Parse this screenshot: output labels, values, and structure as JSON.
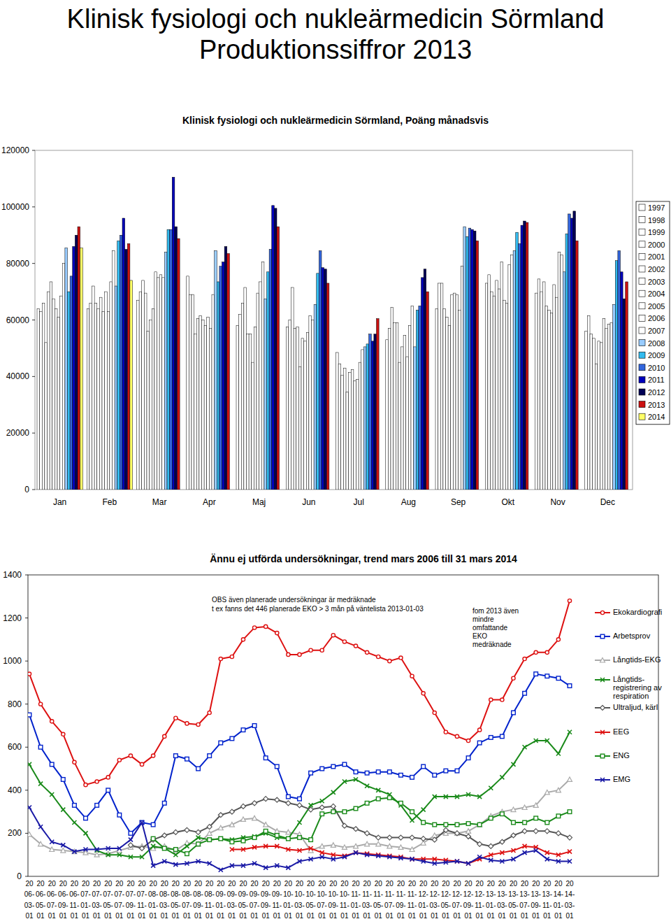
{
  "header": {
    "title": [
      "Klinisk fysiologi och nukleärmedicin Sörmland",
      "Produktionssiffror 2013"
    ]
  },
  "chart_data": [
    {
      "type": "bar",
      "title": "Klinisk fysiologi och nukleärmedicin Sörmland, Poäng månadsvis",
      "categories": [
        "Jan",
        "Feb",
        "Mar",
        "Apr",
        "Maj",
        "Jun",
        "Jul",
        "Aug",
        "Sep",
        "Okt",
        "Nov",
        "Dec"
      ],
      "series": [
        {
          "name": "1997",
          "color": "#ffffff",
          "values": [
            64000,
            64000,
            67000,
            75500,
            58000,
            57500,
            48500,
            53000,
            64000,
            73000,
            69500,
            56000
          ]
        },
        {
          "name": "1998",
          "color": "#ffffff",
          "values": [
            63000,
            66000,
            70000,
            69000,
            62000,
            60000,
            44500,
            57000,
            73000,
            76000,
            74500,
            61500
          ]
        },
        {
          "name": "1999",
          "color": "#ffffff",
          "values": [
            66000,
            72000,
            74000,
            69000,
            66000,
            71500,
            40500,
            64500,
            73000,
            70000,
            70000,
            55000
          ]
        },
        {
          "name": "2000",
          "color": "#ffffff",
          "values": [
            52000,
            66000,
            69500,
            55000,
            71500,
            57000,
            43000,
            59000,
            64000,
            68500,
            73500,
            53500
          ]
        },
        {
          "name": "2001",
          "color": "#ffffff",
          "values": [
            70000,
            64000,
            56000,
            60500,
            55000,
            57500,
            34500,
            59000,
            61000,
            74000,
            65000,
            44500
          ]
        },
        {
          "name": "2002",
          "color": "#ffffff",
          "values": [
            73500,
            68000,
            60000,
            61500,
            55000,
            43500,
            41500,
            45000,
            58000,
            71000,
            63500,
            52500
          ]
        },
        {
          "name": "2003",
          "color": "#ffffff",
          "values": [
            67500,
            63000,
            64000,
            60000,
            45000,
            53500,
            42500,
            50500,
            69000,
            80500,
            62500,
            52000
          ]
        },
        {
          "name": "2004",
          "color": "#ffffff",
          "values": [
            64000,
            70000,
            77000,
            58000,
            57500,
            52500,
            38500,
            54500,
            69500,
            67000,
            72500,
            60500
          ]
        },
        {
          "name": "2005",
          "color": "#ffffff",
          "values": [
            61000,
            63000,
            75000,
            61000,
            69500,
            55500,
            39000,
            47000,
            69000,
            66000,
            68000,
            57000
          ]
        },
        {
          "name": "2006",
          "color": "#ffffff",
          "values": [
            68500,
            73500,
            76000,
            57000,
            73500,
            61500,
            45000,
            58000,
            63500,
            79500,
            84000,
            58500
          ]
        },
        {
          "name": "2007",
          "color": "#ffffff",
          "values": [
            80000,
            84500,
            75000,
            69000,
            80500,
            60000,
            49500,
            65000,
            79000,
            83000,
            83000,
            59000
          ]
        },
        {
          "name": "2008",
          "color": "#99ccff",
          "values": [
            85500,
            72000,
            84000,
            84500,
            67500,
            65500,
            50500,
            50500,
            93000,
            84500,
            77000,
            65500
          ]
        },
        {
          "name": "2009",
          "color": "#33bbee",
          "values": [
            70000,
            88000,
            92000,
            73500,
            77000,
            76500,
            51500,
            63500,
            89500,
            91000,
            90500,
            81000
          ]
        },
        {
          "name": "2010",
          "color": "#3366dd",
          "values": [
            75500,
            90000,
            92000,
            79000,
            85000,
            84500,
            55000,
            65000,
            92500,
            87000,
            97500,
            84500
          ]
        },
        {
          "name": "2011",
          "color": "#0000bb",
          "values": [
            86000,
            96000,
            110500,
            80500,
            100500,
            78500,
            52500,
            75000,
            92000,
            93500,
            96000,
            77000
          ]
        },
        {
          "name": "2012",
          "color": "#000055",
          "values": [
            90000,
            85000,
            93000,
            86000,
            99500,
            78000,
            55000,
            78000,
            91500,
            95000,
            98500,
            67500
          ]
        },
        {
          "name": "2013",
          "color": "#cc1111",
          "values": [
            93000,
            87000,
            88800,
            83500,
            93000,
            73000,
            60500,
            70000,
            88000,
            94500,
            88000,
            73500
          ]
        },
        {
          "name": "2014",
          "color": "#ffff66",
          "values": [
            85500,
            74000,
            null,
            null,
            null,
            null,
            null,
            null,
            null,
            null,
            null,
            null
          ]
        }
      ],
      "ylim": [
        0,
        120000
      ],
      "yticks": [
        0,
        20000,
        40000,
        60000,
        80000,
        100000,
        120000
      ],
      "grid": false,
      "legend": "right"
    },
    {
      "type": "line",
      "title": "Ännu ej utförda undersökningar, trend mars 2006 till 31 mars 2014",
      "annotations": [
        "OBS även planerade undersökningar är medräknade",
        "t ex fanns det 446 planerade EKO > 3 mån på väntelista 2013-01-03",
        "fom 2013 även mindre omfattande EKO medräknade"
      ],
      "categories": [
        "2006-03-01",
        "2006-05-01",
        "2006-07-01",
        "2006-09-01",
        "2006-11-01",
        "2007-01-01",
        "2007-03-01",
        "2007-05-01",
        "2007-07-01",
        "2007-09-01",
        "2007-11-01",
        "2008-01-01",
        "2008-03-01",
        "2008-05-01",
        "2008-07-01",
        "2008-09-01",
        "2008-11-01",
        "2009-01-01",
        "2009-03-01",
        "2009-05-01",
        "2009-07-01",
        "2009-09-01",
        "2009-11-01",
        "2010-01-01",
        "2010-03-01",
        "2010-05-01",
        "2010-07-01",
        "2010-09-01",
        "2010-11-01",
        "2011-01-01",
        "2011-03-01",
        "2011-05-01",
        "2011-07-01",
        "2011-09-01",
        "2011-11-01",
        "2012-01-01",
        "2012-03-01",
        "2012-05-01",
        "2012-07-01",
        "2012-09-01",
        "2012-11-01",
        "2013-01-01",
        "2013-03-01",
        "2013-05-01",
        "2013-07-01",
        "2013-09-01",
        "2013-11-01",
        "2014-01-01",
        "2014-03-01"
      ],
      "series": [
        {
          "name": "Ekokardiografi",
          "color": "#dd1111",
          "marker": "circle",
          "values": [
            940,
            800,
            720,
            660,
            530,
            425,
            440,
            460,
            540,
            560,
            520,
            560,
            650,
            735,
            710,
            705,
            760,
            1010,
            1020,
            1100,
            1155,
            1160,
            1130,
            1030,
            1030,
            1050,
            1050,
            1120,
            1090,
            1070,
            1040,
            1020,
            1000,
            1015,
            930,
            850,
            760,
            670,
            650,
            630,
            680,
            820,
            820,
            920,
            1010,
            1040,
            1040,
            1100,
            1280
          ]
        },
        {
          "name": "Arbetsprov",
          "color": "#0022cc",
          "marker": "square",
          "values": [
            750,
            600,
            520,
            450,
            330,
            270,
            330,
            400,
            285,
            200,
            250,
            240,
            340,
            560,
            545,
            500,
            560,
            620,
            640,
            680,
            700,
            550,
            510,
            370,
            360,
            480,
            500,
            510,
            520,
            485,
            480,
            485,
            485,
            470,
            460,
            510,
            470,
            490,
            490,
            550,
            620,
            645,
            650,
            760,
            850,
            940,
            930,
            920,
            885
          ]
        },
        {
          "name": "Långtids-EKG",
          "color": "#aaaaaa",
          "marker": "triangle",
          "values": [
            195,
            150,
            125,
            120,
            115,
            110,
            100,
            105,
            120,
            135,
            140,
            130,
            140,
            120,
            155,
            150,
            200,
            225,
            240,
            265,
            270,
            240,
            210,
            205,
            195,
            120,
            140,
            145,
            135,
            140,
            150,
            150,
            140,
            135,
            125,
            155,
            190,
            200,
            200,
            210,
            240,
            280,
            300,
            310,
            320,
            330,
            390,
            400,
            450
          ]
        },
        {
          "name": "Långtids-registrering av respiration",
          "color": "#1a8a1a",
          "marker": "x",
          "values": [
            520,
            430,
            380,
            310,
            250,
            200,
            120,
            100,
            100,
            90,
            90,
            140,
            130,
            100,
            140,
            180,
            170,
            175,
            170,
            180,
            185,
            200,
            180,
            175,
            250,
            330,
            350,
            390,
            440,
            450,
            420,
            400,
            380,
            330,
            260,
            310,
            370,
            370,
            370,
            380,
            370,
            410,
            460,
            520,
            600,
            630,
            630,
            570,
            670
          ]
        },
        {
          "name": "Ultraljud, kärl",
          "color": "#555555",
          "marker": "diamond",
          "values": [
            null,
            null,
            null,
            null,
            null,
            null,
            null,
            null,
            null,
            145,
            130,
            170,
            190,
            205,
            215,
            205,
            230,
            285,
            300,
            325,
            340,
            360,
            355,
            340,
            330,
            310,
            320,
            325,
            235,
            220,
            200,
            180,
            180,
            180,
            180,
            175,
            170,
            215,
            200,
            185,
            150,
            140,
            160,
            190,
            210,
            210,
            210,
            200,
            180
          ]
        },
        {
          "name": "EEG",
          "color": "#dd1111",
          "marker": "x",
          "values": [
            null,
            null,
            null,
            null,
            null,
            null,
            null,
            null,
            null,
            null,
            null,
            null,
            null,
            null,
            null,
            null,
            null,
            null,
            125,
            125,
            135,
            140,
            140,
            125,
            120,
            130,
            110,
            100,
            95,
            110,
            105,
            100,
            95,
            90,
            80,
            80,
            80,
            75,
            70,
            60,
            80,
            100,
            110,
            120,
            140,
            135,
            110,
            100,
            115
          ]
        },
        {
          "name": "ENG",
          "color": "#1a8a1a",
          "marker": "square",
          "values": [
            null,
            null,
            null,
            null,
            null,
            null,
            null,
            null,
            null,
            null,
            null,
            175,
            130,
            125,
            105,
            150,
            170,
            175,
            160,
            165,
            180,
            210,
            190,
            175,
            180,
            170,
            290,
            300,
            300,
            315,
            340,
            360,
            365,
            340,
            300,
            250,
            240,
            240,
            240,
            245,
            240,
            270,
            290,
            250,
            250,
            270,
            250,
            280,
            300
          ]
        },
        {
          "name": "EMG",
          "color": "#1a1aa6",
          "marker": "x",
          "values": [
            320,
            230,
            160,
            145,
            115,
            125,
            125,
            130,
            130,
            170,
            250,
            50,
            70,
            55,
            60,
            70,
            60,
            30,
            50,
            50,
            60,
            40,
            50,
            40,
            70,
            80,
            90,
            80,
            90,
            110,
            100,
            95,
            90,
            85,
            80,
            70,
            60,
            65,
            70,
            60,
            90,
            75,
            70,
            80,
            110,
            120,
            80,
            70,
            70
          ]
        }
      ],
      "ylim": [
        0,
        1400
      ],
      "yticks": [
        0,
        200,
        400,
        600,
        800,
        1000,
        1200,
        1400
      ],
      "grid": false,
      "legend": "right"
    }
  ]
}
